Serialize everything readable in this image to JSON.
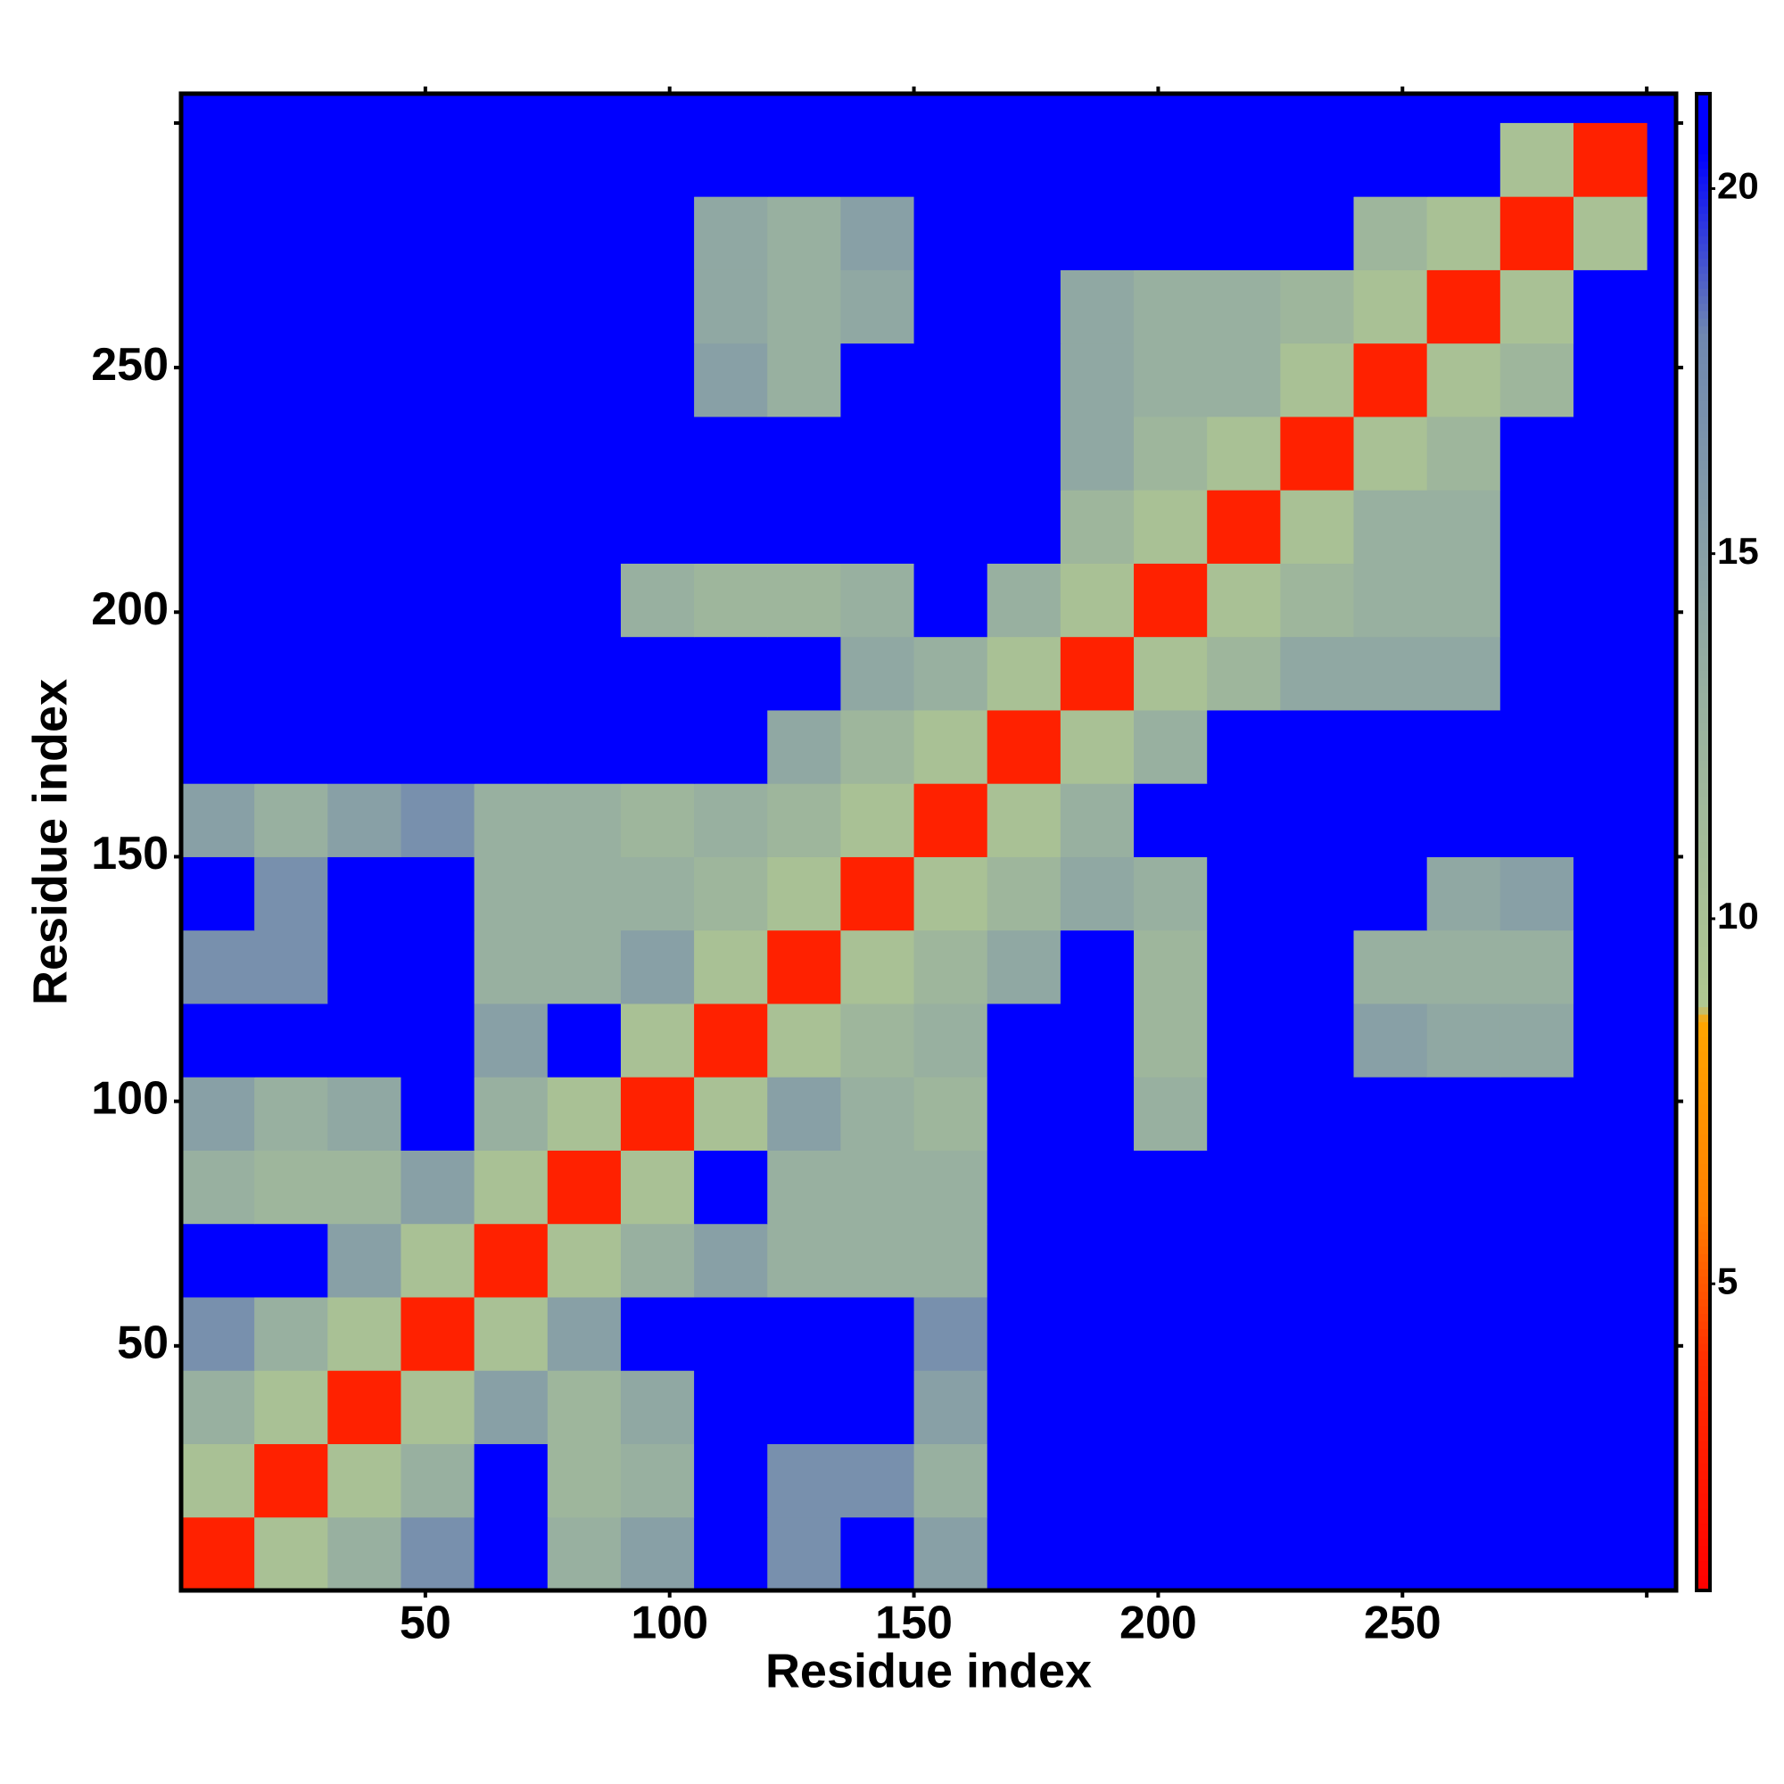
{
  "chart_data": {
    "type": "heatmap",
    "x_label": "Residue index",
    "y_label": "Residue index",
    "xbins": [
      0,
      15,
      30,
      45,
      60,
      75,
      90,
      105,
      120,
      135,
      150,
      165,
      180,
      195,
      210,
      225,
      240,
      255,
      270,
      285,
      300
    ],
    "ybins": [
      0,
      15,
      30,
      45,
      60,
      75,
      90,
      105,
      120,
      135,
      150,
      165,
      180,
      195,
      210,
      225,
      240,
      255,
      270,
      285,
      300
    ],
    "z": [
      [
        3,
        10,
        13,
        17,
        21,
        13,
        15,
        21,
        17,
        21,
        15,
        21,
        21,
        21,
        21,
        21,
        21,
        21,
        21,
        21
      ],
      [
        10,
        3,
        10,
        13,
        21,
        12,
        13,
        21,
        17,
        17,
        13,
        21,
        21,
        21,
        21,
        21,
        21,
        21,
        21,
        21
      ],
      [
        13,
        10,
        3,
        10,
        15,
        12,
        14,
        21,
        21,
        21,
        15,
        21,
        21,
        21,
        21,
        21,
        21,
        21,
        21,
        21
      ],
      [
        17,
        13,
        10,
        3,
        10,
        15,
        21,
        21,
        21,
        21,
        17,
        21,
        21,
        21,
        21,
        21,
        21,
        21,
        21,
        21
      ],
      [
        21,
        21,
        15,
        10,
        3,
        10,
        13,
        15,
        13,
        13,
        13,
        21,
        21,
        21,
        21,
        21,
        21,
        21,
        21,
        21
      ],
      [
        13,
        12,
        12,
        15,
        10,
        3,
        10,
        21,
        13,
        13,
        13,
        21,
        21,
        21,
        21,
        21,
        21,
        21,
        21,
        21
      ],
      [
        15,
        13,
        14,
        21,
        13,
        10,
        3,
        10,
        15,
        13,
        12,
        21,
        21,
        13,
        21,
        21,
        21,
        21,
        21,
        21
      ],
      [
        21,
        21,
        21,
        21,
        15,
        21,
        10,
        3,
        10,
        12,
        13,
        21,
        21,
        12,
        21,
        21,
        15,
        14,
        14,
        21
      ],
      [
        17,
        17,
        21,
        21,
        13,
        13,
        15,
        10,
        3,
        10,
        12,
        14,
        21,
        12,
        21,
        21,
        13,
        13,
        13,
        21
      ],
      [
        21,
        17,
        21,
        21,
        13,
        13,
        13,
        12,
        10,
        3,
        10,
        12,
        14,
        13,
        21,
        21,
        21,
        14,
        15,
        21
      ],
      [
        15,
        13,
        15,
        17,
        13,
        13,
        12,
        13,
        12,
        10,
        3,
        10,
        13,
        21,
        21,
        21,
        21,
        21,
        21,
        21
      ],
      [
        21,
        21,
        21,
        21,
        21,
        21,
        21,
        21,
        14,
        12,
        10,
        3,
        10,
        13,
        21,
        21,
        21,
        21,
        21,
        21
      ],
      [
        21,
        21,
        21,
        21,
        21,
        21,
        21,
        21,
        21,
        14,
        13,
        10,
        3,
        10,
        12,
        14,
        14,
        14,
        21,
        21
      ],
      [
        21,
        21,
        21,
        21,
        21,
        21,
        13,
        12,
        12,
        13,
        21,
        13,
        10,
        3,
        10,
        12,
        13,
        13,
        21,
        21
      ],
      [
        21,
        21,
        21,
        21,
        21,
        21,
        21,
        21,
        21,
        21,
        21,
        21,
        12,
        10,
        3,
        10,
        13,
        13,
        21,
        21
      ],
      [
        21,
        21,
        21,
        21,
        21,
        21,
        21,
        21,
        21,
        21,
        21,
        21,
        14,
        12,
        10,
        3,
        10,
        12,
        21,
        21
      ],
      [
        21,
        21,
        21,
        21,
        21,
        21,
        21,
        15,
        13,
        21,
        21,
        21,
        14,
        13,
        13,
        10,
        3,
        10,
        12,
        21
      ],
      [
        21,
        21,
        21,
        21,
        21,
        21,
        21,
        14,
        13,
        14,
        21,
        21,
        14,
        13,
        13,
        12,
        10,
        3,
        10,
        21
      ],
      [
        21,
        21,
        21,
        21,
        21,
        21,
        21,
        14,
        13,
        15,
        21,
        21,
        21,
        21,
        21,
        21,
        12,
        10,
        3,
        10
      ],
      [
        21,
        21,
        21,
        21,
        21,
        21,
        21,
        21,
        21,
        21,
        21,
        21,
        21,
        21,
        21,
        21,
        21,
        21,
        10,
        3
      ]
    ],
    "xlim": [
      0,
      306
    ],
    "ylim": [
      0,
      306
    ],
    "xticks": [
      50,
      100,
      150,
      200,
      250
    ],
    "yticks": [
      50,
      100,
      150,
      200,
      250
    ],
    "minor_ticks": [
      300
    ],
    "clim": [
      0.8,
      21.3
    ],
    "cticks": [
      5,
      10,
      15,
      20
    ],
    "colorscale": [
      [
        0.8,
        "#ff0000"
      ],
      [
        4,
        "#ff3000"
      ],
      [
        6,
        "#ff8000"
      ],
      [
        8.6,
        "#ffa500"
      ],
      [
        8.8,
        "#b0c890"
      ],
      [
        13,
        "#98b0a0"
      ],
      [
        18,
        "#7088b0"
      ],
      [
        20.5,
        "#0000ff"
      ]
    ]
  }
}
